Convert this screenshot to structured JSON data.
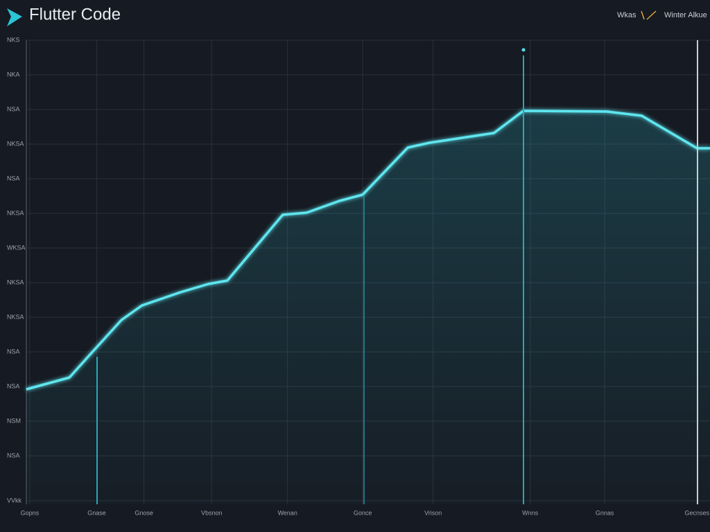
{
  "chart_data": {
    "type": "line",
    "title": "Flutter Code",
    "header_items": [
      "Wkas",
      "Winter Alkue"
    ],
    "x": [
      0,
      6.3,
      9.3,
      13.9,
      16.9,
      22.5,
      26.6,
      29.4,
      37.5,
      41,
      45.8,
      49.2,
      55.8,
      59,
      68.4,
      72.7,
      84.9,
      90,
      98.1,
      100
    ],
    "series": [
      {
        "color": "#5fe6ef",
        "values": [
          2.92,
          3.26,
          3.92,
          4.92,
          5.34,
          5.72,
          5.96,
          6.06,
          7.96,
          8.02,
          8.36,
          8.54,
          9.9,
          10.04,
          10.32,
          10.96,
          10.94,
          10.82,
          9.88,
          9.88
        ]
      }
    ],
    "xlim": [
      0,
      100
    ],
    "ylim": [
      -0.3,
      13
    ],
    "xticks": [
      {
        "value": 0.5,
        "label": "Gopns"
      },
      {
        "value": 10.3,
        "label": "Gnase"
      },
      {
        "value": 17.2,
        "label": "Gnose"
      },
      {
        "value": 27.1,
        "label": "Vbsnon"
      },
      {
        "value": 38.2,
        "label": "Wenan"
      },
      {
        "value": 49.2,
        "label": "Gonce"
      },
      {
        "value": 59.5,
        "label": "Vrison"
      },
      {
        "value": 73.7,
        "label": "Wnns"
      },
      {
        "value": 84.6,
        "label": "Gnnas"
      },
      {
        "value": 98.1,
        "label": "Gecnses"
      }
    ],
    "yticks": [
      {
        "value": -0.3,
        "label": "VVkk"
      },
      {
        "value": 1,
        "label": "NSA"
      },
      {
        "value": 2,
        "label": "NSM"
      },
      {
        "value": 3,
        "label": "NSA"
      },
      {
        "value": 4,
        "label": "NSA"
      },
      {
        "value": 5,
        "label": "NKSA"
      },
      {
        "value": 6,
        "label": "NKSA"
      },
      {
        "value": 7,
        "label": "WKSA"
      },
      {
        "value": 8,
        "label": "NKSA"
      },
      {
        "value": 9,
        "label": "NSA"
      },
      {
        "value": 10,
        "label": "NKSA"
      },
      {
        "value": 11,
        "label": "NSA"
      },
      {
        "value": 12,
        "label": "NKA"
      },
      {
        "value": 13,
        "label": "NKS"
      }
    ],
    "grid": true
  }
}
